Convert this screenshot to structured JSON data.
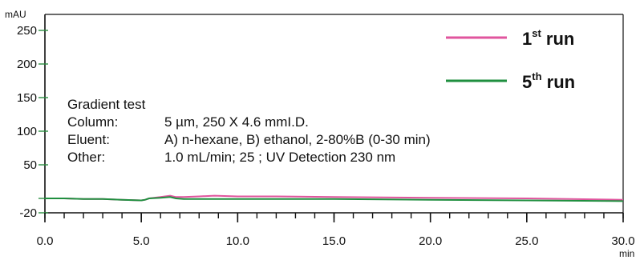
{
  "chart_data": {
    "type": "line",
    "x_unit": "min",
    "y_unit": "mAU",
    "xlim": [
      0.0,
      30.0
    ],
    "ylim": [
      -20,
      260
    ],
    "x_ticks": [
      0.0,
      5.0,
      10.0,
      15.0,
      20.0,
      25.0,
      30.0
    ],
    "x_tick_labels": [
      "0.0",
      "5.0",
      "10.0",
      "15.0",
      "20.0",
      "25.0",
      "30.0"
    ],
    "y_ticks": [
      250,
      200,
      150,
      100,
      50,
      -20
    ],
    "y_tick_labels": [
      "250",
      "200",
      "150",
      "100",
      "50",
      "-20"
    ],
    "x_minor_step": 1.0,
    "grid": false,
    "legend_position": "top-right",
    "legend": [
      {
        "base": "1",
        "sup": "st",
        "rest": " run",
        "color": "#e0559e"
      },
      {
        "base": "5",
        "sup": "th",
        "rest": " run",
        "color": "#1f8f3f"
      }
    ],
    "annotation": {
      "title": "Gradient test",
      "rows": [
        {
          "key": "Column:",
          "value": "5 µm, 250 X 4.6 mmI.D."
        },
        {
          "key": "Eluent:",
          "value": "A) n-hexane, B) ethanol, 2-80%B (0-30 min)"
        },
        {
          "key": "Other:",
          "value": "1.0 mL/min; 25  ; UV Detection 230 nm"
        }
      ]
    },
    "series": [
      {
        "color": "#e0559e",
        "x": [
          0.0,
          1.0,
          2.0,
          3.0,
          4.0,
          5.0,
          5.2,
          5.4,
          6.0,
          6.5,
          6.8,
          7.2,
          8.0,
          8.8,
          10.0,
          12.0,
          15.0,
          20.0,
          25.0,
          30.0
        ],
        "y": [
          0,
          0,
          -1,
          -1,
          -2,
          -3,
          -2,
          0,
          2,
          4,
          2,
          2,
          3,
          4,
          3,
          3,
          2,
          1,
          0,
          -2
        ]
      },
      {
        "color": "#1f8f3f",
        "x": [
          0.0,
          1.0,
          2.0,
          3.0,
          4.0,
          5.0,
          5.2,
          5.4,
          6.0,
          6.5,
          6.8,
          7.2,
          8.0,
          10.0,
          15.0,
          20.0,
          25.0,
          30.0
        ],
        "y": [
          0,
          0,
          -1,
          -1,
          -2,
          -3,
          -2,
          0,
          1,
          2,
          0,
          -1,
          -1,
          -1,
          -1,
          -2,
          -3,
          -4
        ]
      }
    ]
  }
}
